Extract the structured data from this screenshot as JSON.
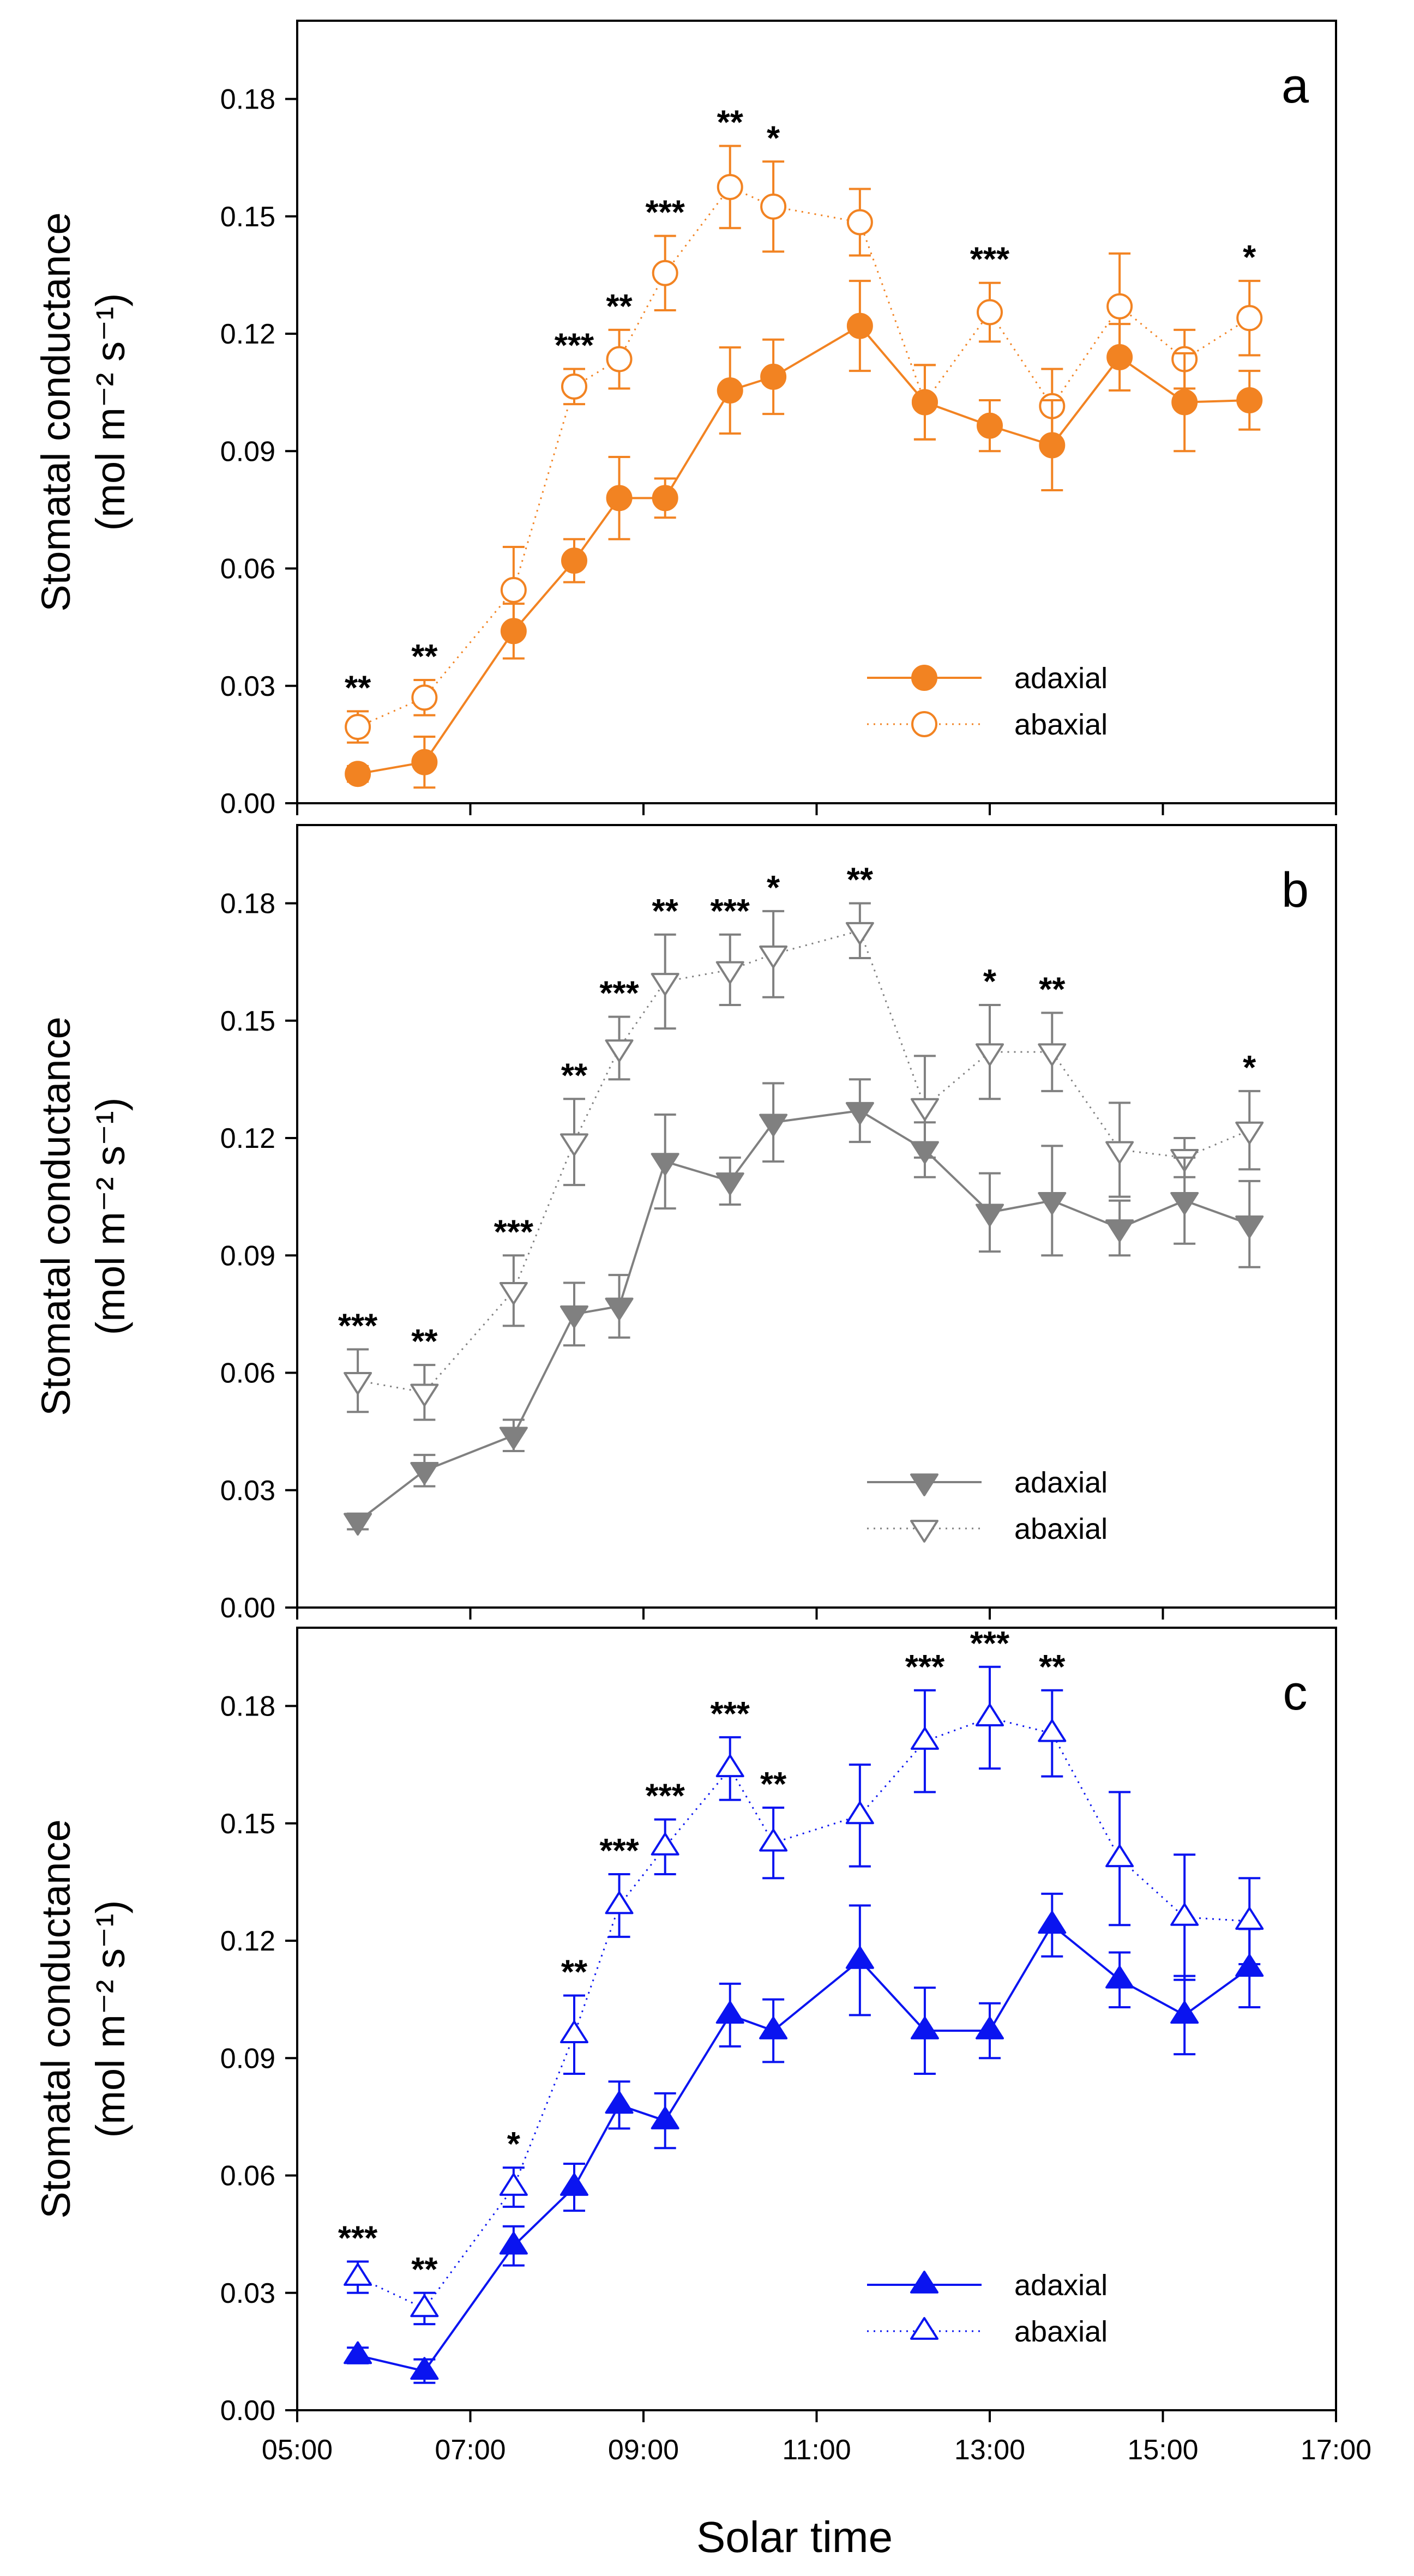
{
  "figure": {
    "xlabel": "Solar time"
  },
  "chart_data": [
    {
      "type": "line",
      "panel": "a",
      "ylabel_line1": "Stomatal conductance",
      "ylabel_line2": "(mol m⁻² s⁻¹)",
      "xlabel": "Solar time",
      "xlim": [
        5,
        17
      ],
      "ylim": [
        0,
        0.2
      ],
      "xticks": [
        5,
        7,
        9,
        11,
        13,
        15,
        17
      ],
      "xtick_labels": [
        "05:00",
        "07:00",
        "09:00",
        "11:00",
        "13:00",
        "15:00",
        "17:00"
      ],
      "yticks": [
        0,
        0.03,
        0.06,
        0.09,
        0.12,
        0.15,
        0.18
      ],
      "ytick_labels": [
        "0.00",
        "0.03",
        "0.06",
        "0.09",
        "0.12",
        "0.15",
        "0.18"
      ],
      "legend_position": "bottom-right",
      "color": "#F28322",
      "marker": "circle",
      "x": [
        5.7,
        6.47,
        7.5,
        8.2,
        8.72,
        9.25,
        10.0,
        10.5,
        11.5,
        12.25,
        13.0,
        13.72,
        14.5,
        15.25,
        16.0
      ],
      "series": [
        {
          "name": "adaxial",
          "filled": true,
          "style": "solid",
          "values": [
            0.0075,
            0.0105,
            0.044,
            0.062,
            0.078,
            0.078,
            0.1055,
            0.109,
            0.122,
            0.1025,
            0.0965,
            0.0915,
            0.114,
            0.1025,
            0.103
          ],
          "errors": [
            0.002,
            0.0065,
            0.007,
            0.0055,
            0.0105,
            0.005,
            0.011,
            0.0095,
            0.0115,
            0.0095,
            0.0065,
            0.0115,
            0.0085,
            0.0125,
            0.0075
          ]
        },
        {
          "name": "abaxial",
          "filled": false,
          "style": "dotted",
          "values": [
            0.0195,
            0.027,
            0.0545,
            0.1065,
            0.1135,
            0.1355,
            0.1575,
            0.1525,
            0.1485,
            0.1025,
            0.1255,
            0.1015,
            0.127,
            0.1135,
            0.124
          ],
          "errors": [
            0.004,
            0.0045,
            0.011,
            0.0045,
            0.0075,
            0.0095,
            0.0105,
            0.0115,
            0.0085,
            0.0095,
            0.0075,
            0.0095,
            0.0135,
            0.0075,
            0.0095
          ]
        }
      ],
      "significance": [
        {
          "x": 5.7,
          "label": "**"
        },
        {
          "x": 6.47,
          "label": "**"
        },
        {
          "x": 8.2,
          "label": "***"
        },
        {
          "x": 8.72,
          "label": "**"
        },
        {
          "x": 9.25,
          "label": "***"
        },
        {
          "x": 10.0,
          "label": "**"
        },
        {
          "x": 10.5,
          "label": "*"
        },
        {
          "x": 13.0,
          "label": "***"
        },
        {
          "x": 16.0,
          "label": "*"
        }
      ]
    },
    {
      "type": "line",
      "panel": "b",
      "ylabel_line1": "Stomatal conductance",
      "ylabel_line2": "(mol m⁻² s⁻¹)",
      "xlabel": "Solar time",
      "xlim": [
        5,
        17
      ],
      "ylim": [
        0,
        0.2
      ],
      "xticks": [
        5,
        7,
        9,
        11,
        13,
        15,
        17
      ],
      "xtick_labels": [
        "05:00",
        "07:00",
        "09:00",
        "11:00",
        "13:00",
        "15:00",
        "17:00"
      ],
      "yticks": [
        0,
        0.03,
        0.06,
        0.09,
        0.12,
        0.15,
        0.18
      ],
      "ytick_labels": [
        "0.00",
        "0.03",
        "0.06",
        "0.09",
        "0.12",
        "0.15",
        "0.18"
      ],
      "legend_position": "bottom-right",
      "color": "#808080",
      "marker": "triangle-down",
      "x": [
        5.7,
        6.47,
        7.5,
        8.2,
        8.72,
        9.25,
        10.0,
        10.5,
        11.5,
        12.25,
        13.0,
        13.72,
        14.5,
        15.25,
        16.0
      ],
      "series": [
        {
          "name": "adaxial",
          "filled": true,
          "style": "solid",
          "values": [
            0.022,
            0.035,
            0.044,
            0.075,
            0.077,
            0.114,
            0.109,
            0.124,
            0.127,
            0.117,
            0.101,
            0.104,
            0.097,
            0.104,
            0.098
          ],
          "errors": [
            0.002,
            0.004,
            0.004,
            0.008,
            0.008,
            0.012,
            0.006,
            0.01,
            0.008,
            0.007,
            0.01,
            0.014,
            0.007,
            0.011,
            0.011
          ]
        },
        {
          "name": "abaxial",
          "filled": false,
          "style": "dotted",
          "values": [
            0.058,
            0.055,
            0.081,
            0.119,
            0.143,
            0.16,
            0.163,
            0.167,
            0.173,
            0.128,
            0.142,
            0.142,
            0.117,
            0.115,
            0.122
          ],
          "errors": [
            0.008,
            0.007,
            0.009,
            0.011,
            0.008,
            0.012,
            0.009,
            0.011,
            0.007,
            0.013,
            0.012,
            0.01,
            0.012,
            0.005,
            0.01
          ]
        }
      ],
      "significance": [
        {
          "x": 5.7,
          "label": "***"
        },
        {
          "x": 6.47,
          "label": "**"
        },
        {
          "x": 7.5,
          "label": "***"
        },
        {
          "x": 8.2,
          "label": "**"
        },
        {
          "x": 8.72,
          "label": "***"
        },
        {
          "x": 9.25,
          "label": "**"
        },
        {
          "x": 10.0,
          "label": "***"
        },
        {
          "x": 10.5,
          "label": "*"
        },
        {
          "x": 11.5,
          "label": "**"
        },
        {
          "x": 13.0,
          "label": "*"
        },
        {
          "x": 13.72,
          "label": "**"
        },
        {
          "x": 16.0,
          "label": "*"
        }
      ]
    },
    {
      "type": "line",
      "panel": "c",
      "ylabel_line1": "Stomatal conductance",
      "ylabel_line2": "(mol m⁻² s⁻¹)",
      "xlabel": "Solar time",
      "xlim": [
        5,
        17
      ],
      "ylim": [
        0,
        0.2
      ],
      "xticks": [
        5,
        7,
        9,
        11,
        13,
        15,
        17
      ],
      "xtick_labels": [
        "05:00",
        "07:00",
        "09:00",
        "11:00",
        "13:00",
        "15:00",
        "17:00"
      ],
      "yticks": [
        0,
        0.03,
        0.06,
        0.09,
        0.12,
        0.15,
        0.18
      ],
      "ytick_labels": [
        "0.00",
        "0.03",
        "0.06",
        "0.09",
        "0.12",
        "0.15",
        "0.18"
      ],
      "legend_position": "bottom-right",
      "color": "#0A14F0",
      "marker": "triangle-up",
      "x": [
        5.7,
        6.47,
        7.5,
        8.2,
        8.72,
        9.25,
        10.0,
        10.5,
        11.5,
        12.25,
        13.0,
        13.72,
        14.5,
        15.25,
        16.0
      ],
      "series": [
        {
          "name": "adaxial",
          "filled": true,
          "style": "solid",
          "values": [
            0.014,
            0.01,
            0.042,
            0.057,
            0.078,
            0.074,
            0.101,
            0.097,
            0.115,
            0.097,
            0.097,
            0.124,
            0.11,
            0.101,
            0.113
          ],
          "errors": [
            0.002,
            0.003,
            0.005,
            0.006,
            0.006,
            0.007,
            0.008,
            0.008,
            0.014,
            0.011,
            0.007,
            0.008,
            0.007,
            0.01,
            0.01
          ]
        },
        {
          "name": "abaxial",
          "filled": false,
          "style": "dotted",
          "values": [
            0.034,
            0.026,
            0.057,
            0.096,
            0.129,
            0.144,
            0.164,
            0.145,
            0.152,
            0.171,
            0.177,
            0.173,
            0.141,
            0.126,
            0.125
          ],
          "errors": [
            0.004,
            0.004,
            0.005,
            0.01,
            0.008,
            0.007,
            0.008,
            0.009,
            0.013,
            0.013,
            0.013,
            0.011,
            0.017,
            0.016,
            0.011
          ]
        }
      ],
      "significance": [
        {
          "x": 5.7,
          "label": "***"
        },
        {
          "x": 6.47,
          "label": "**"
        },
        {
          "x": 7.5,
          "label": "*"
        },
        {
          "x": 8.2,
          "label": "**"
        },
        {
          "x": 8.72,
          "label": "***"
        },
        {
          "x": 9.25,
          "label": "***"
        },
        {
          "x": 10.0,
          "label": "***"
        },
        {
          "x": 10.5,
          "label": "**"
        },
        {
          "x": 12.25,
          "label": "***"
        },
        {
          "x": 13.0,
          "label": "***"
        },
        {
          "x": 13.72,
          "label": "**"
        }
      ]
    }
  ]
}
